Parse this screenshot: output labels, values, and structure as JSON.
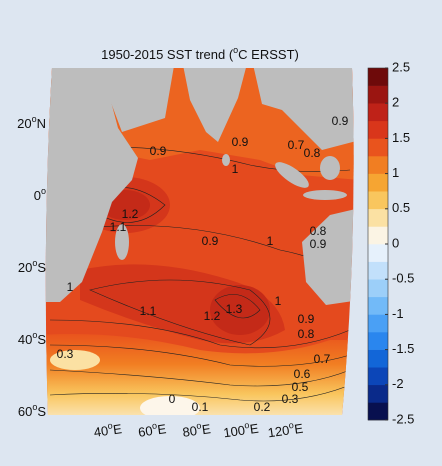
{
  "chart_data": {
    "type": "map",
    "title": {
      "before": "1950-2015 SST trend (",
      "sup": "o",
      "after": "C ERSST)"
    },
    "lat_ticks": [
      {
        "value": 20,
        "label": "20",
        "sup": "o",
        "suffix": "N"
      },
      {
        "value": 0,
        "label": "0",
        "sup": "o",
        "suffix": ""
      },
      {
        "value": -20,
        "label": "20",
        "sup": "o",
        "suffix": "S"
      },
      {
        "value": -40,
        "label": "40",
        "sup": "o",
        "suffix": "S"
      },
      {
        "value": -60,
        "label": "60",
        "sup": "o",
        "suffix": "S"
      }
    ],
    "lon_ticks": [
      {
        "value": 40,
        "label": "40",
        "sup": "o",
        "suffix": "E"
      },
      {
        "value": 60,
        "label": "60",
        "sup": "o",
        "suffix": "E"
      },
      {
        "value": 80,
        "label": "80",
        "sup": "o",
        "suffix": "E"
      },
      {
        "value": 100,
        "label": "100",
        "sup": "o",
        "suffix": "E"
      },
      {
        "value": 120,
        "label": "120",
        "sup": "o",
        "suffix": "E"
      }
    ],
    "clim": [
      -2.5,
      2.5
    ],
    "colorbar_ticks": [
      2.5,
      2,
      1.5,
      1,
      0.5,
      0,
      -0.5,
      -1,
      -1.5,
      -2,
      -2.5
    ],
    "colormap": [
      "#08104f",
      "#0a2a8a",
      "#0c46b8",
      "#1266d8",
      "#2a86ee",
      "#4aa0f5",
      "#72baf8",
      "#9ccff9",
      "#c2e0fb",
      "#e6f1fc",
      "#fbf4e4",
      "#fbe1a3",
      "#f9c65e",
      "#f6a532",
      "#f17e22",
      "#e9541d",
      "#d9361b",
      "#bf2218",
      "#9b1511",
      "#6e0a0a"
    ],
    "contour_labels": [
      0.9,
      0.9,
      1,
      0.7,
      0.8,
      0.9,
      1.2,
      1.1,
      0.9,
      1,
      0.8,
      0.9,
      1,
      1.1,
      1.2,
      1.3,
      1,
      0.9,
      0.8,
      0.3,
      0.7,
      0.6,
      0.5,
      0.3,
      0.2,
      0,
      0.1
    ]
  }
}
